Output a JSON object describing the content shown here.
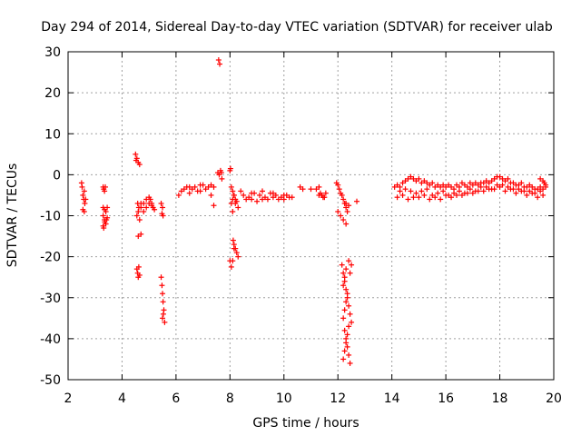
{
  "chart_data": {
    "type": "scatter",
    "title": "Day 294 of 2014, Sidereal Day-to-day VTEC variation (SDTVAR) for receiver ulab",
    "xlabel": "GPS time / hours",
    "ylabel": "SDTVAR / TECUs",
    "xlim": [
      2,
      20
    ],
    "ylim": [
      -50,
      30
    ],
    "xticks": [
      2,
      4,
      6,
      8,
      10,
      12,
      14,
      16,
      18,
      20
    ],
    "yticks": [
      30,
      20,
      10,
      0,
      -10,
      -20,
      -30,
      -40,
      -50
    ],
    "grid": true,
    "marker": "plus",
    "color": "#ff0000",
    "series": [
      {
        "name": "SDTVAR",
        "x": [
          2.5,
          2.52,
          2.55,
          2.58,
          2.6,
          2.62,
          2.55,
          2.6,
          2.65,
          3.3,
          3.32,
          3.35,
          3.38,
          3.3,
          3.35,
          3.4,
          3.45,
          3.3,
          3.35,
          3.4,
          3.45,
          3.32,
          3.36,
          3.42,
          3.3,
          4.5,
          4.55,
          4.6,
          4.65,
          4.52,
          4.58,
          4.62,
          4.55,
          4.6,
          4.65,
          4.7,
          4.8,
          4.9,
          5.0,
          5.05,
          5.1,
          5.15,
          5.2,
          4.7,
          4.8,
          4.9,
          5.0,
          5.1,
          4.6,
          4.7,
          4.55,
          4.6,
          4.58,
          4.62,
          4.65,
          5.45,
          5.48,
          5.5,
          5.52,
          5.55,
          5.58,
          5.5,
          5.53,
          5.45,
          5.52,
          5.48,
          5.5,
          6.2,
          6.4,
          6.6,
          6.8,
          7.0,
          7.2,
          7.4,
          6.3,
          6.5,
          6.7,
          6.9,
          7.1,
          7.3,
          6.1,
          6.5,
          6.9,
          7.3,
          7.4,
          7.55,
          7.6,
          7.65,
          7.58,
          7.62,
          7.68,
          7.7,
          8.0,
          8.02,
          8.05,
          8.1,
          8.15,
          8.2,
          8.05,
          8.1,
          8.15,
          8.2,
          8.3,
          8.25,
          8.1,
          8.12,
          8.15,
          8.2,
          8.25,
          8.3,
          8.0,
          8.05,
          8.1,
          8.15,
          8.5,
          8.7,
          8.9,
          9.1,
          9.3,
          9.5,
          9.7,
          9.9,
          10.1,
          10.3,
          8.6,
          8.8,
          9.0,
          9.2,
          9.4,
          9.6,
          9.8,
          10.0,
          10.2,
          8.4,
          8.8,
          9.2,
          9.6,
          10.0,
          10.6,
          10.7,
          11.0,
          11.2,
          11.3,
          11.35,
          11.4,
          11.5,
          11.55,
          11.3,
          11.45,
          11.95,
          12.0,
          12.05,
          12.1,
          12.15,
          12.2,
          12.25,
          12.3,
          12.0,
          12.1,
          12.2,
          12.3,
          12.4,
          12.15,
          12.2,
          12.25,
          12.3,
          12.35,
          12.4,
          12.45,
          12.5,
          12.25,
          12.3,
          12.35,
          12.4,
          12.45,
          12.2,
          12.25,
          12.3,
          12.35,
          12.4,
          12.2,
          12.25,
          12.3,
          12.35,
          12.2,
          12.25,
          12.3,
          12.4,
          12.45,
          12.5,
          12.7,
          12.3,
          12.35,
          14.1,
          14.2,
          14.3,
          14.4,
          14.5,
          14.6,
          14.7,
          14.8,
          14.9,
          15.0,
          15.1,
          15.2,
          15.3,
          15.4,
          15.5,
          15.6,
          15.7,
          15.8,
          15.9,
          16.0,
          16.1,
          16.2,
          16.3,
          16.4,
          16.5,
          16.6,
          16.7,
          16.8,
          16.9,
          17.0,
          17.1,
          17.2,
          17.3,
          17.4,
          17.5,
          17.6,
          17.7,
          17.8,
          17.9,
          18.0,
          18.1,
          18.2,
          18.3,
          18.4,
          18.5,
          18.6,
          18.7,
          18.8,
          18.9,
          19.0,
          19.1,
          19.2,
          19.3,
          19.4,
          19.5,
          19.6,
          19.7,
          14.3,
          14.5,
          14.7,
          14.9,
          15.1,
          15.3,
          15.5,
          15.7,
          15.9,
          16.1,
          16.3,
          16.5,
          16.7,
          16.9,
          17.1,
          17.3,
          17.5,
          17.7,
          17.9,
          18.1,
          18.3,
          18.5,
          18.7,
          18.9,
          19.1,
          19.3,
          19.5,
          14.4,
          14.8,
          15.2,
          15.6,
          16.0,
          16.4,
          16.8,
          17.2,
          17.6,
          18.0,
          18.4,
          18.8,
          19.2,
          19.6,
          14.2,
          14.6,
          15.0,
          15.4,
          15.8,
          16.2,
          16.6,
          17.0,
          17.4,
          17.8,
          18.2,
          18.6,
          19.0,
          19.4,
          19.5,
          19.6,
          19.65,
          19.7
        ],
        "y": [
          -2,
          -3,
          -5,
          -6,
          -4,
          -7,
          -8.5,
          -9,
          -6,
          -3,
          -3.5,
          -4,
          -3,
          -8,
          -8.5,
          -9,
          -8,
          -10,
          -11,
          -12,
          -10.5,
          -13,
          -11.5,
          -11,
          -12.5,
          5,
          4,
          3,
          2.5,
          3.5,
          -7,
          -8,
          -10,
          -9,
          -11,
          -8,
          -7,
          -6,
          -5.5,
          -6,
          -7,
          -8,
          -8.5,
          -7,
          -9,
          -8,
          -7,
          -7.5,
          -15,
          -14.5,
          -23,
          -25,
          -24,
          -22.5,
          -24.5,
          -25,
          -27,
          -29,
          -31,
          -33,
          -36,
          -35,
          -34,
          -7,
          -10,
          -9.5,
          -8,
          -4,
          -3,
          -3.5,
          -4,
          -2.5,
          -3,
          -3,
          -3.5,
          -4.5,
          -3,
          -2.5,
          -3.5,
          -2.5,
          -5,
          -3,
          -4,
          -5,
          -7.5,
          0.5,
          0,
          1,
          28,
          27,
          0.5,
          -1,
          1,
          1.5,
          -3,
          -4,
          -5,
          -6,
          -7,
          -6,
          -5,
          -7,
          -8,
          -6.5,
          -9,
          -16,
          -17,
          -18,
          -19,
          -20,
          -21,
          -22.5,
          -21,
          -18,
          -5,
          -5.5,
          -4.5,
          -5,
          -5.5,
          -4.5,
          -5,
          -5.5,
          -5,
          -5.5,
          -6,
          -6,
          -6.5,
          -6,
          -6,
          -5.5,
          -6,
          -6,
          -5.5,
          -4,
          -4.5,
          -4,
          -4.5,
          -5,
          -3,
          -3.5,
          -3.5,
          -3.5,
          -3,
          -4.5,
          -5,
          -5.5,
          -4.5,
          -5,
          -5.5,
          -2,
          -2.5,
          -3.5,
          -4.5,
          -5,
          -6,
          -7,
          -8,
          -9,
          -10,
          -11,
          -12,
          -7.5,
          -22,
          -24,
          -26,
          -28,
          -30,
          -32,
          -34,
          -36,
          -38,
          -40,
          -42,
          -44,
          -46,
          -45,
          -43,
          -41,
          -39,
          -37,
          -35,
          -33,
          -31,
          -29,
          -27,
          -25,
          -23,
          -21,
          -24,
          -22,
          -6.5,
          -7,
          -9,
          -3,
          -2.5,
          -3,
          -2,
          -1.5,
          -1,
          -0.5,
          -1,
          -1.5,
          -1,
          -2,
          -1.5,
          -2,
          -2.5,
          -2,
          -3,
          -2.5,
          -3,
          -2.5,
          -3,
          -2.5,
          -3,
          -3.5,
          -2.5,
          -3,
          -2,
          -2.5,
          -3,
          -2,
          -2.5,
          -2,
          -2.5,
          -2,
          -2,
          -1.5,
          -2,
          -1.5,
          -1,
          -0.5,
          -0.5,
          -1,
          -1.5,
          -1,
          -2,
          -2,
          -2.5,
          -2.5,
          -2,
          -3,
          -3,
          -2.5,
          -3,
          -3.5,
          -3.5,
          -3,
          -3.5,
          -3,
          -4,
          -3.5,
          -4,
          -4.5,
          -4,
          -3.5,
          -5,
          -4.5,
          -4,
          -5,
          -4.5,
          -4,
          -4.5,
          -3.5,
          -4,
          -3,
          -3,
          -3.5,
          -2.5,
          -2.5,
          -3,
          -3.5,
          -3.5,
          -4,
          -4,
          -4.5,
          -4,
          -5,
          -5.5,
          -5,
          -5.5,
          -5,
          -5,
          -4.5,
          -4,
          -3.5,
          -3,
          -3.5,
          -4,
          -4.5,
          -5,
          -5.5,
          -6,
          -5.5,
          -6,
          -6,
          -5.5,
          -5,
          -4.5,
          -4,
          -3.5,
          -4,
          -4.5,
          -5,
          -5.5,
          -1,
          -1.5,
          -2,
          -2.5
        ]
      }
    ]
  }
}
